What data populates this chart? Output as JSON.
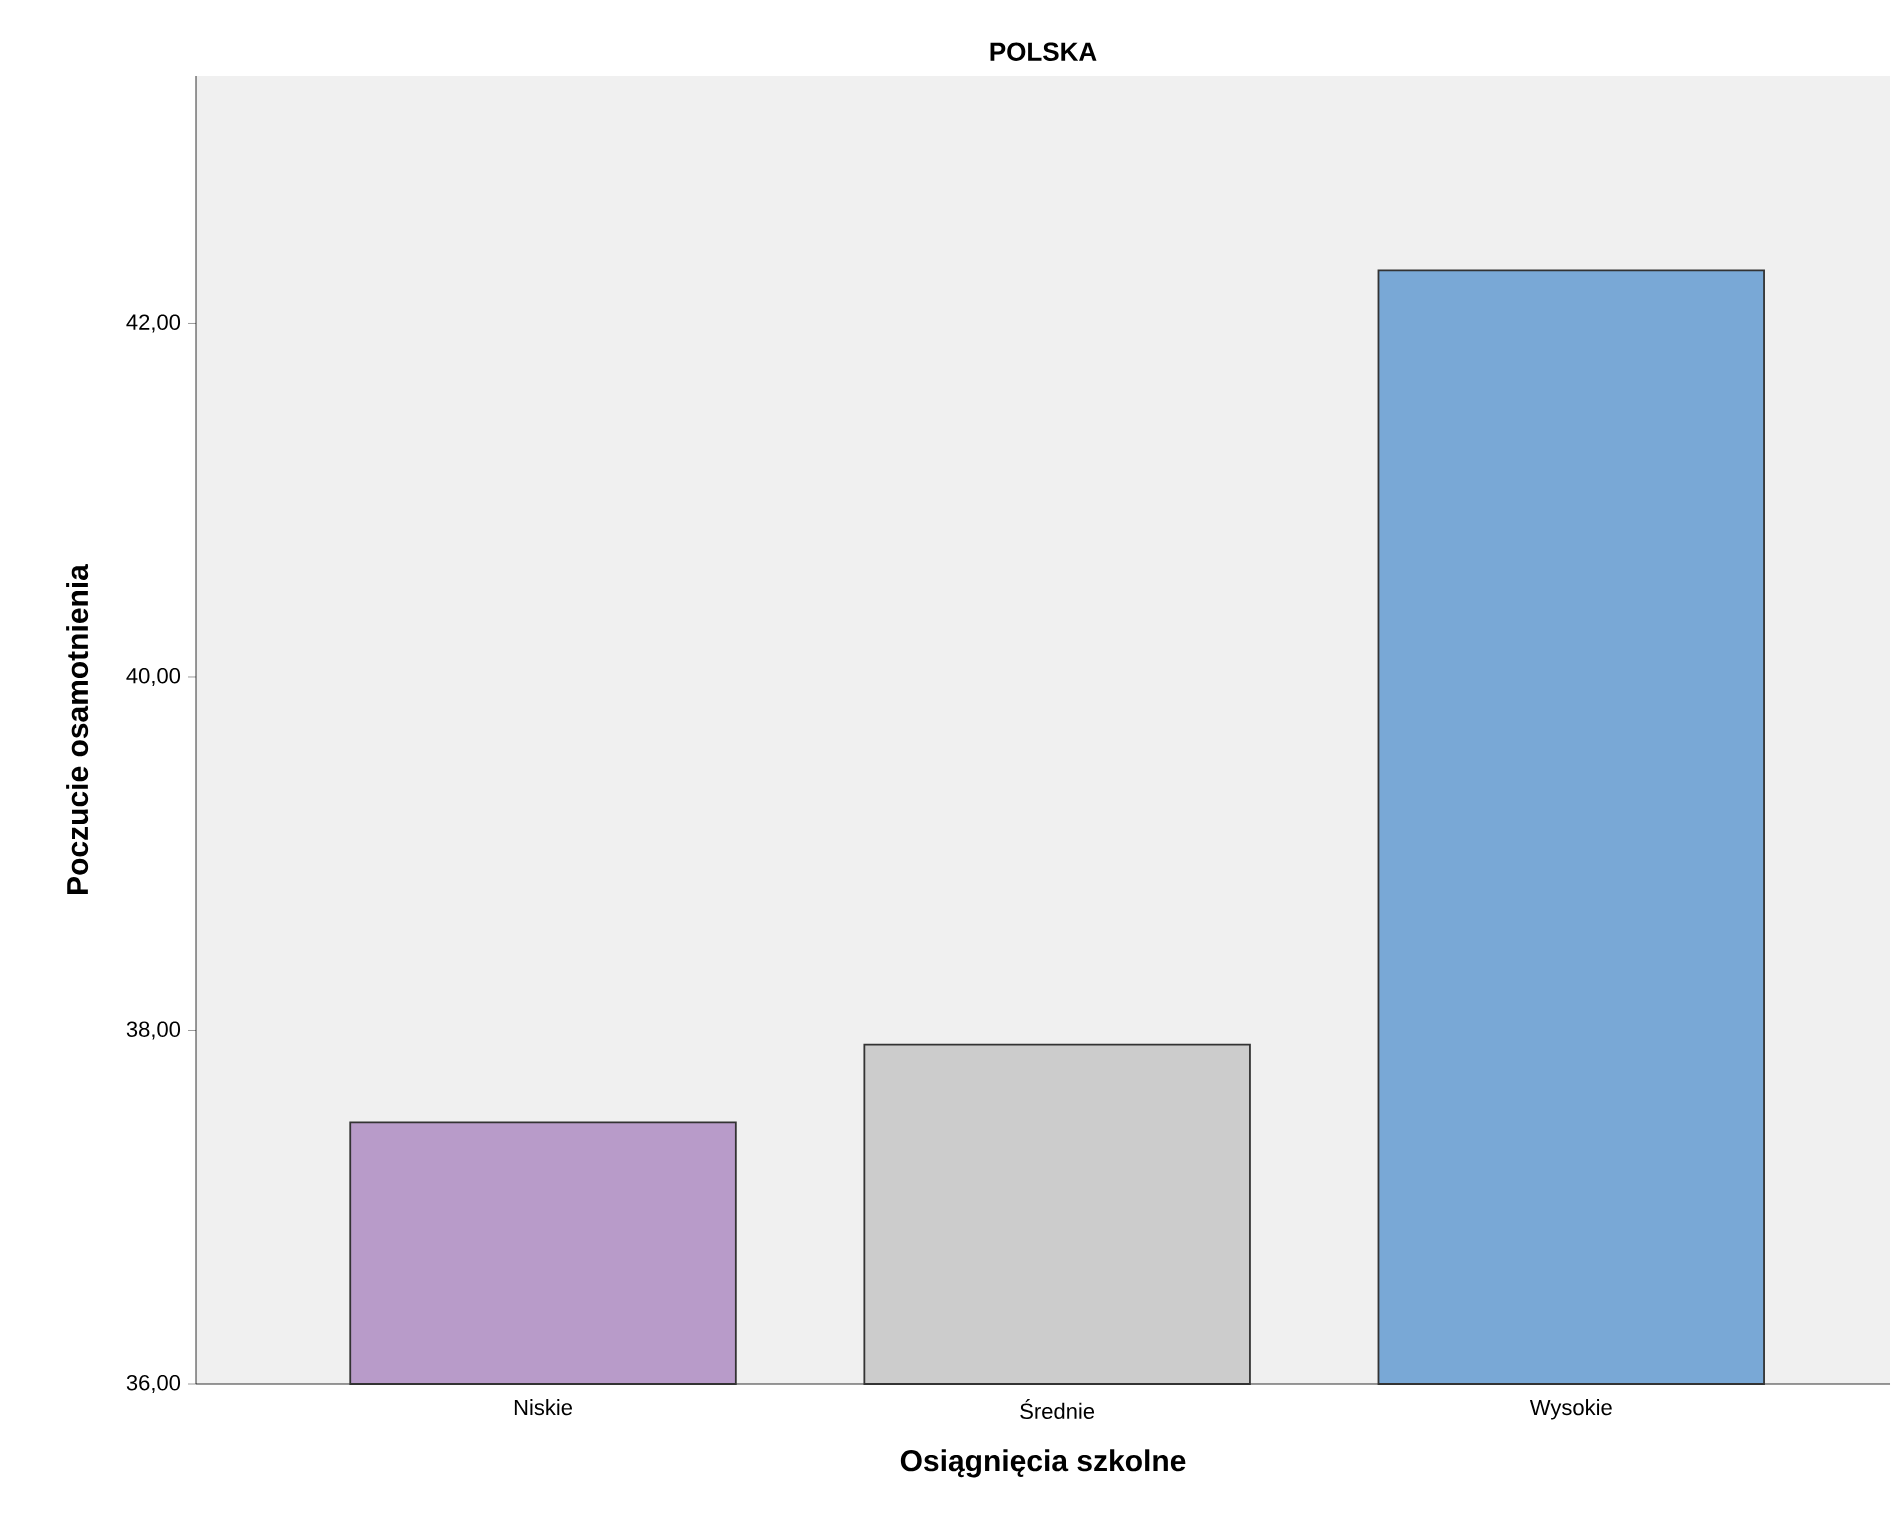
{
  "chart_data": {
    "type": "bar",
    "title": "POLSKA",
    "xlabel": "Osiągnięcia szkolne",
    "ylabel": "Poczucie osamotnienia",
    "categories": [
      "Niskie",
      "Średnie",
      "Wysokie"
    ],
    "values": [
      37.48,
      37.92,
      42.3
    ],
    "colors": [
      "#b89bc9",
      "#cccccc",
      "#79a8d6"
    ],
    "ylim": [
      36,
      43.4
    ],
    "yticks": [
      {
        "value": 36,
        "label": "36,00"
      },
      {
        "value": 38,
        "label": "38,00"
      },
      {
        "value": 40,
        "label": "40,00"
      },
      {
        "value": 42,
        "label": "42,00"
      }
    ],
    "grid": false
  }
}
